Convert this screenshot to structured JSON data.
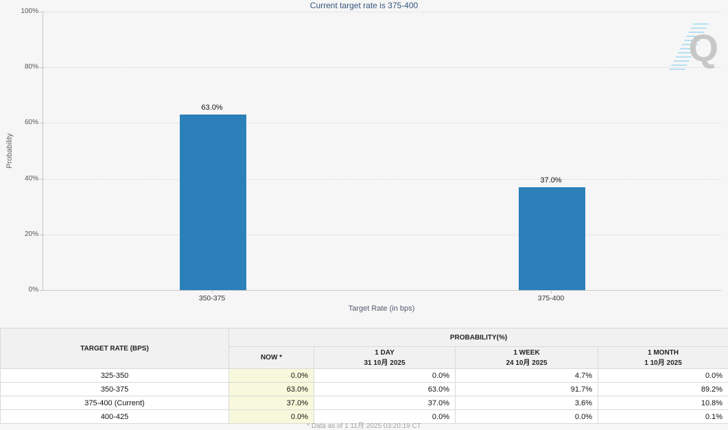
{
  "page": {
    "footnote": "* Data as of 1 11月 2025 03:20:19 CT",
    "watermark_letter": "Q"
  },
  "chart_data": {
    "type": "bar",
    "title": "Current target rate is 375-400",
    "categories": [
      "350-375",
      "375-400"
    ],
    "values": [
      63.0,
      37.0
    ],
    "bar_labels": [
      "63.0%",
      "37.0%"
    ],
    "xlabel": "Target Rate (in bps)",
    "ylabel": "Probability",
    "ylim": [
      0,
      100
    ],
    "ytick_step": 20,
    "ytick_suffix": "%",
    "grid": "horizontal-dotted",
    "legend": "none",
    "bar_color": "#2b80b9"
  },
  "table": {
    "corner_header": "TARGET RATE (BPS)",
    "group_header": "PROBABILITY(%)",
    "columns": [
      {
        "label": "NOW *",
        "sub": ""
      },
      {
        "label": "1 DAY",
        "sub": "31 10月 2025"
      },
      {
        "label": "1 WEEK",
        "sub": "24 10月 2025"
      },
      {
        "label": "1 MONTH",
        "sub": "1 10月 2025"
      }
    ],
    "rows": [
      {
        "rate": "325-350",
        "values": [
          "0.0%",
          "0.0%",
          "4.7%",
          "0.0%"
        ]
      },
      {
        "rate": "350-375",
        "values": [
          "63.0%",
          "63.0%",
          "91.7%",
          "89.2%"
        ]
      },
      {
        "rate": "375-400 (Current)",
        "values": [
          "37.0%",
          "37.0%",
          "3.6%",
          "10.8%"
        ]
      },
      {
        "rate": "400-425",
        "values": [
          "0.0%",
          "0.0%",
          "0.0%",
          "0.1%"
        ]
      }
    ]
  },
  "colors": {
    "title": "#33547d",
    "bar": "#2b80b9",
    "now_column_bg": "#f8f8dc"
  }
}
